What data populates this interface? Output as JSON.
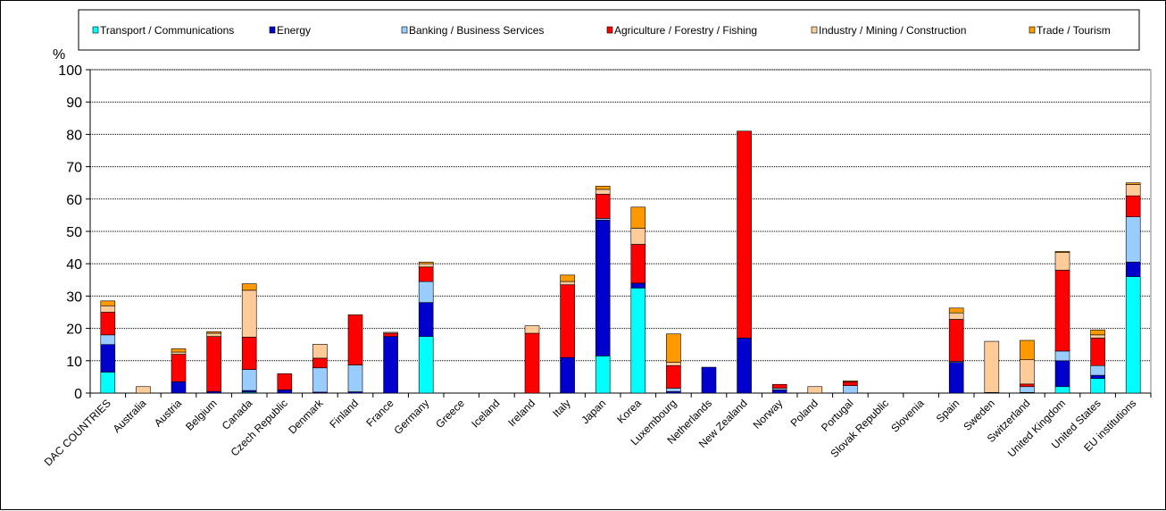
{
  "chart_data": {
    "type": "bar",
    "stacked": true,
    "title": "",
    "ylabel": "%",
    "xlabel": "",
    "ylim": [
      0,
      100
    ],
    "yticks": [
      0,
      10,
      20,
      30,
      40,
      50,
      60,
      70,
      80,
      90,
      100
    ],
    "grid": true,
    "legend_position": "top",
    "categories": [
      "DAC COUNTRIES",
      "Australia",
      "Austria",
      "Belgium",
      "Canada",
      "Czech Republic",
      "Denmark",
      "Finland",
      "France",
      "Germany",
      "Greece",
      "Iceland",
      "Ireland",
      "Italy",
      "Japan",
      "Korea",
      "Luxembourg",
      "Netherlands",
      "New Zealand",
      "Norway",
      "Poland",
      "Portugal",
      "Slovak Republic",
      "Slovenia",
      "Spain",
      "Sweden",
      "Switzerland",
      "United Kingdom",
      "United States",
      "EU institutions"
    ],
    "series": [
      {
        "name": "Transport / Communications",
        "color": "#00FFFF",
        "values": [
          6.5,
          0,
          0,
          0,
          0.3,
          0,
          0,
          0,
          0,
          17.5,
          0,
          0,
          0,
          0,
          11.5,
          32.5,
          0,
          0,
          0,
          0,
          0,
          0,
          0,
          0,
          0,
          0,
          0,
          2,
          4.5,
          36
        ]
      },
      {
        "name": "Energy",
        "color": "#0000CC",
        "values": [
          8.5,
          0,
          3.5,
          0.5,
          0.5,
          1,
          0.3,
          0.4,
          17.5,
          10.5,
          0,
          0,
          0,
          11,
          42,
          1.5,
          0.5,
          8,
          17,
          1,
          0,
          0,
          0,
          0,
          9.5,
          0.2,
          0.2,
          8,
          1,
          4.5
        ]
      },
      {
        "name": "Banking / Business Services",
        "color": "#99CCFF",
        "values": [
          3,
          0,
          0,
          0,
          6.5,
          0,
          7.5,
          8.3,
          0,
          6.5,
          0,
          0,
          0,
          0,
          0.5,
          0,
          1,
          0,
          0,
          0.5,
          0,
          2.3,
          0,
          0,
          0.3,
          0,
          1.8,
          3,
          3,
          14
        ]
      },
      {
        "name": "Agriculture / Forestry / Fishing",
        "color": "#FF0000",
        "values": [
          7,
          0,
          8.5,
          17,
          10,
          5,
          3,
          15.5,
          1,
          4.5,
          0,
          0,
          18.5,
          22.5,
          7.5,
          12,
          7,
          0,
          64,
          1.2,
          0,
          1.2,
          0,
          0,
          13,
          0,
          0.8,
          25,
          8.5,
          6.5
        ]
      },
      {
        "name": "Industry / Mining / Construction",
        "color": "#FFCC99",
        "values": [
          2,
          2,
          0.7,
          1,
          14.5,
          0,
          4.3,
          0,
          0.3,
          1,
          0,
          0,
          2.3,
          1,
          1.5,
          5,
          1,
          0,
          0,
          0,
          2,
          0,
          0,
          0,
          2,
          15.8,
          7.5,
          5.5,
          1,
          3.5
        ]
      },
      {
        "name": "Trade / Tourism",
        "color": "#FF9900",
        "values": [
          1.5,
          0,
          1,
          0.5,
          2,
          0,
          0,
          0,
          0,
          0.5,
          0,
          0,
          0,
          2,
          1,
          6.5,
          8.8,
          0,
          0,
          0,
          0,
          0.3,
          0,
          0,
          1.5,
          0,
          6,
          0.3,
          1.5,
          0.5
        ]
      }
    ]
  }
}
